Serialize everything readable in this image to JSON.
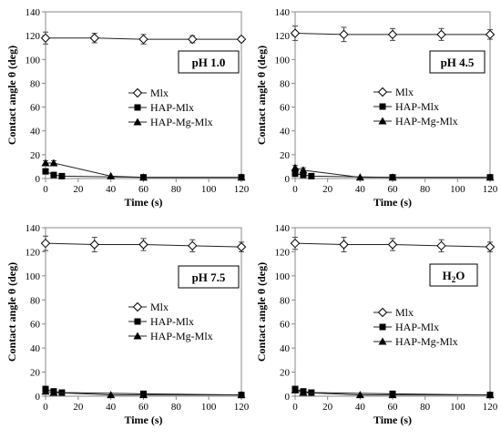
{
  "chart_data": [
    {
      "type": "line",
      "tag": "pH 1.0",
      "tag_sub": "",
      "xlabel": "Time (s)",
      "ylabel": "Contact angle θ (deg)",
      "xlim": [
        0,
        120
      ],
      "ylim": [
        0,
        140
      ],
      "xticks": [
        0,
        20,
        40,
        60,
        80,
        100,
        120
      ],
      "yticks": [
        0,
        20,
        40,
        60,
        80,
        100,
        120,
        140
      ],
      "grid": false,
      "legend_position": "center-right",
      "series": [
        {
          "name": "Mlx",
          "marker": "diamond-open",
          "x": [
            0,
            30,
            60,
            90,
            120
          ],
          "y": [
            118,
            118,
            117,
            117,
            117
          ],
          "err": [
            5,
            4,
            4,
            3,
            2
          ]
        },
        {
          "name": "HAP-Mlx",
          "marker": "square",
          "x": [
            0,
            5,
            10,
            60,
            120
          ],
          "y": [
            6,
            3,
            2,
            1,
            1
          ],
          "err": [
            0,
            0,
            0,
            0,
            0
          ]
        },
        {
          "name": "HAP-Mg-Mlx",
          "marker": "triangle",
          "x": [
            0,
            5,
            40,
            60,
            120
          ],
          "y": [
            13,
            13,
            2,
            1,
            1
          ],
          "err": [
            2,
            2,
            0,
            0,
            0
          ]
        }
      ]
    },
    {
      "type": "line",
      "tag": "pH 4.5",
      "tag_sub": "",
      "xlabel": "Time (s)",
      "ylabel": "Contact angle θ (deg)",
      "xlim": [
        0,
        120
      ],
      "ylim": [
        0,
        140
      ],
      "xticks": [
        0,
        20,
        40,
        60,
        80,
        100,
        120
      ],
      "yticks": [
        0,
        20,
        40,
        60,
        80,
        100,
        120,
        140
      ],
      "grid": false,
      "legend_position": "center-right",
      "series": [
        {
          "name": "Mlx",
          "marker": "diamond-open",
          "x": [
            0,
            30,
            60,
            90,
            120
          ],
          "y": [
            122,
            121,
            121,
            121,
            121
          ],
          "err": [
            6,
            6,
            5,
            5,
            4
          ]
        },
        {
          "name": "HAP-Mlx",
          "marker": "square",
          "x": [
            0,
            5,
            10,
            60,
            120
          ],
          "y": [
            4,
            3,
            2,
            1,
            1
          ],
          "err": [
            0,
            0,
            0,
            0,
            0
          ]
        },
        {
          "name": "HAP-Mg-Mlx",
          "marker": "triangle",
          "x": [
            0,
            5,
            40,
            60,
            120
          ],
          "y": [
            9,
            7,
            1,
            1,
            1
          ],
          "err": [
            2,
            2,
            0,
            0,
            0
          ]
        }
      ]
    },
    {
      "type": "line",
      "tag": "pH 7.5",
      "tag_sub": "",
      "xlabel": "Time (s)",
      "ylabel": "Contact angle θ (deg)",
      "xlim": [
        0,
        120
      ],
      "ylim": [
        0,
        140
      ],
      "xticks": [
        0,
        20,
        40,
        60,
        80,
        100,
        120
      ],
      "yticks": [
        0,
        20,
        40,
        60,
        80,
        100,
        120,
        140
      ],
      "grid": false,
      "legend_position": "center-right",
      "series": [
        {
          "name": "Mlx",
          "marker": "diamond-open",
          "x": [
            0,
            30,
            60,
            90,
            120
          ],
          "y": [
            127,
            126,
            126,
            125,
            124
          ],
          "err": [
            6,
            6,
            5,
            5,
            4
          ]
        },
        {
          "name": "HAP-Mlx",
          "marker": "square",
          "x": [
            0,
            5,
            10,
            60,
            120
          ],
          "y": [
            6,
            4,
            3,
            2,
            1
          ],
          "err": [
            0,
            0,
            0,
            0,
            0
          ]
        },
        {
          "name": "HAP-Mg-Mlx",
          "marker": "triangle",
          "x": [
            0,
            5,
            40,
            60,
            120
          ],
          "y": [
            4,
            3,
            1,
            1,
            1
          ],
          "err": [
            0,
            0,
            0,
            0,
            0
          ]
        }
      ]
    },
    {
      "type": "line",
      "tag": "H",
      "tag_sub": "2",
      "tag_suffix": "O",
      "xlabel": "Time (s)",
      "ylabel": "Contact angle θ (deg)",
      "xlim": [
        0,
        120
      ],
      "ylim": [
        0,
        140
      ],
      "xticks": [
        0,
        20,
        40,
        60,
        80,
        100,
        120
      ],
      "yticks": [
        0,
        20,
        40,
        60,
        80,
        100,
        120,
        140
      ],
      "grid": false,
      "legend_position": "center-right",
      "series": [
        {
          "name": "Mlx",
          "marker": "diamond-open",
          "x": [
            0,
            30,
            60,
            90,
            120
          ],
          "y": [
            127,
            126,
            126,
            125,
            124
          ],
          "err": [
            5,
            6,
            5,
            5,
            4
          ]
        },
        {
          "name": "HAP-Mlx",
          "marker": "square",
          "x": [
            0,
            5,
            10,
            60,
            120
          ],
          "y": [
            6,
            4,
            3,
            2,
            1
          ],
          "err": [
            0,
            0,
            0,
            0,
            0
          ]
        },
        {
          "name": "HAP-Mg-Mlx",
          "marker": "triangle",
          "x": [
            0,
            5,
            40,
            60,
            120
          ],
          "y": [
            5,
            3,
            1,
            1,
            1
          ],
          "err": [
            0,
            0,
            0,
            0,
            0
          ]
        }
      ]
    }
  ]
}
